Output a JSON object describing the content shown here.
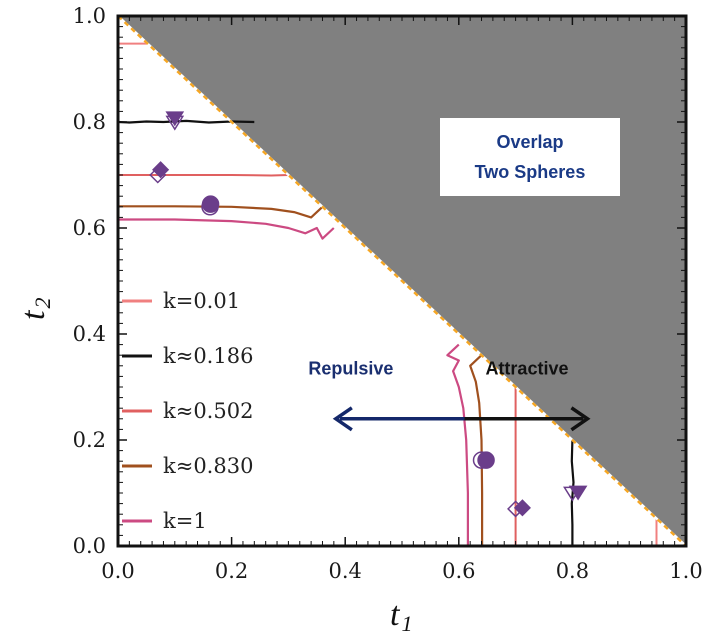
{
  "chart_data": {
    "type": "line",
    "xlabel": "t",
    "xlabel_sub": "1",
    "ylabel": "t",
    "ylabel_sub": "2",
    "xlim": [
      0.0,
      1.0
    ],
    "ylim": [
      0.0,
      1.0
    ],
    "xticks": [
      "0.0",
      "0.2",
      "0.4",
      "0.6",
      "0.8",
      "1.0"
    ],
    "yticks": [
      "0.0",
      "0.2",
      "0.4",
      "0.6",
      "0.8",
      "1.0"
    ],
    "grid": false,
    "legend_position": "bottom-left",
    "overlap_region": {
      "label_lines": [
        "Overlap",
        "Two  Spheres"
      ],
      "color": "#808080",
      "boundary_color": "#f5a623",
      "boundary": [
        [
          0.0,
          1.0
        ],
        [
          1.0,
          0.0
        ]
      ]
    },
    "series": [
      {
        "name": "k=0.01",
        "color": "#f08080",
        "width": 2,
        "horizontal": [
          [
            0.0,
            0.948
          ],
          [
            0.052,
            0.948
          ]
        ],
        "vertical": [
          [
            0.948,
            0.0
          ],
          [
            0.948,
            0.052
          ]
        ]
      },
      {
        "name": "k≈0.186",
        "color": "#111111",
        "width": 2.2,
        "horizontal": [
          [
            0.0,
            0.8
          ],
          [
            0.02,
            0.799
          ],
          [
            0.05,
            0.801
          ],
          [
            0.08,
            0.8
          ],
          [
            0.12,
            0.802
          ],
          [
            0.16,
            0.799
          ],
          [
            0.2,
            0.801
          ],
          [
            0.24,
            0.8
          ]
        ],
        "vertical": [
          [
            0.8,
            0.0
          ],
          [
            0.8,
            0.04
          ],
          [
            0.799,
            0.08
          ],
          [
            0.802,
            0.12
          ],
          [
            0.799,
            0.16
          ],
          [
            0.8,
            0.2
          ]
        ]
      },
      {
        "name": "k≈0.502",
        "color": "#e06060",
        "width": 2,
        "horizontal": [
          [
            0.0,
            0.7
          ],
          [
            0.1,
            0.7
          ],
          [
            0.2,
            0.7
          ],
          [
            0.27,
            0.699
          ],
          [
            0.3,
            0.7
          ]
        ],
        "vertical": [
          [
            0.7,
            0.0
          ],
          [
            0.7,
            0.1
          ],
          [
            0.7,
            0.2
          ],
          [
            0.7,
            0.27
          ],
          [
            0.7,
            0.3
          ]
        ]
      },
      {
        "name": "k≈0.830",
        "color": "#a0501e",
        "width": 2.2,
        "horizontal": [
          [
            0.0,
            0.641
          ],
          [
            0.1,
            0.641
          ],
          [
            0.2,
            0.64
          ],
          [
            0.27,
            0.636
          ],
          [
            0.31,
            0.63
          ],
          [
            0.34,
            0.62
          ],
          [
            0.36,
            0.64
          ]
        ],
        "vertical": [
          [
            0.641,
            0.0
          ],
          [
            0.641,
            0.1
          ],
          [
            0.64,
            0.2
          ],
          [
            0.636,
            0.27
          ],
          [
            0.63,
            0.31
          ],
          [
            0.62,
            0.34
          ],
          [
            0.64,
            0.36
          ]
        ]
      },
      {
        "name": "k=1",
        "color": "#cc4a82",
        "width": 2.2,
        "horizontal": [
          [
            0.0,
            0.616
          ],
          [
            0.1,
            0.616
          ],
          [
            0.2,
            0.613
          ],
          [
            0.26,
            0.608
          ],
          [
            0.3,
            0.6
          ],
          [
            0.33,
            0.59
          ],
          [
            0.35,
            0.6
          ],
          [
            0.36,
            0.58
          ],
          [
            0.38,
            0.6
          ]
        ],
        "vertical": [
          [
            0.616,
            0.0
          ],
          [
            0.616,
            0.1
          ],
          [
            0.613,
            0.2
          ],
          [
            0.608,
            0.26
          ],
          [
            0.6,
            0.3
          ],
          [
            0.59,
            0.33
          ],
          [
            0.6,
            0.35
          ],
          [
            0.58,
            0.36
          ],
          [
            0.6,
            0.38
          ]
        ]
      }
    ],
    "markers": [
      {
        "shape": "triangle-down",
        "filled": true,
        "x": 0.1,
        "y": 0.808
      },
      {
        "shape": "triangle-down",
        "filled": false,
        "x": 0.1,
        "y": 0.8
      },
      {
        "shape": "diamond",
        "filled": true,
        "x": 0.075,
        "y": 0.71
      },
      {
        "shape": "diamond",
        "filled": false,
        "x": 0.07,
        "y": 0.7
      },
      {
        "shape": "circle",
        "filled": true,
        "x": 0.163,
        "y": 0.645
      },
      {
        "shape": "circle",
        "filled": false,
        "x": 0.162,
        "y": 0.64
      },
      {
        "shape": "circle",
        "filled": true,
        "x": 0.648,
        "y": 0.162
      },
      {
        "shape": "circle",
        "filled": false,
        "x": 0.64,
        "y": 0.162
      },
      {
        "shape": "diamond",
        "filled": true,
        "x": 0.712,
        "y": 0.072
      },
      {
        "shape": "diamond",
        "filled": false,
        "x": 0.7,
        "y": 0.07
      },
      {
        "shape": "triangle-down",
        "filled": true,
        "x": 0.81,
        "y": 0.102
      },
      {
        "shape": "triangle-down",
        "filled": false,
        "x": 0.8,
        "y": 0.1
      }
    ],
    "marker_color": "#6a3d8a",
    "annotations": [
      {
        "text": "Repulsive",
        "x": 0.41,
        "y": 0.335,
        "color": "#1a2f70"
      },
      {
        "text": "Attractive",
        "x": 0.72,
        "y": 0.335,
        "color": "#111111"
      }
    ],
    "arrows": [
      {
        "from": [
          0.61,
          0.24
        ],
        "to": [
          0.38,
          0.24
        ],
        "color": "#14286a"
      },
      {
        "from": [
          0.61,
          0.24
        ],
        "to": [
          0.83,
          0.24
        ],
        "color": "#111111"
      }
    ]
  }
}
